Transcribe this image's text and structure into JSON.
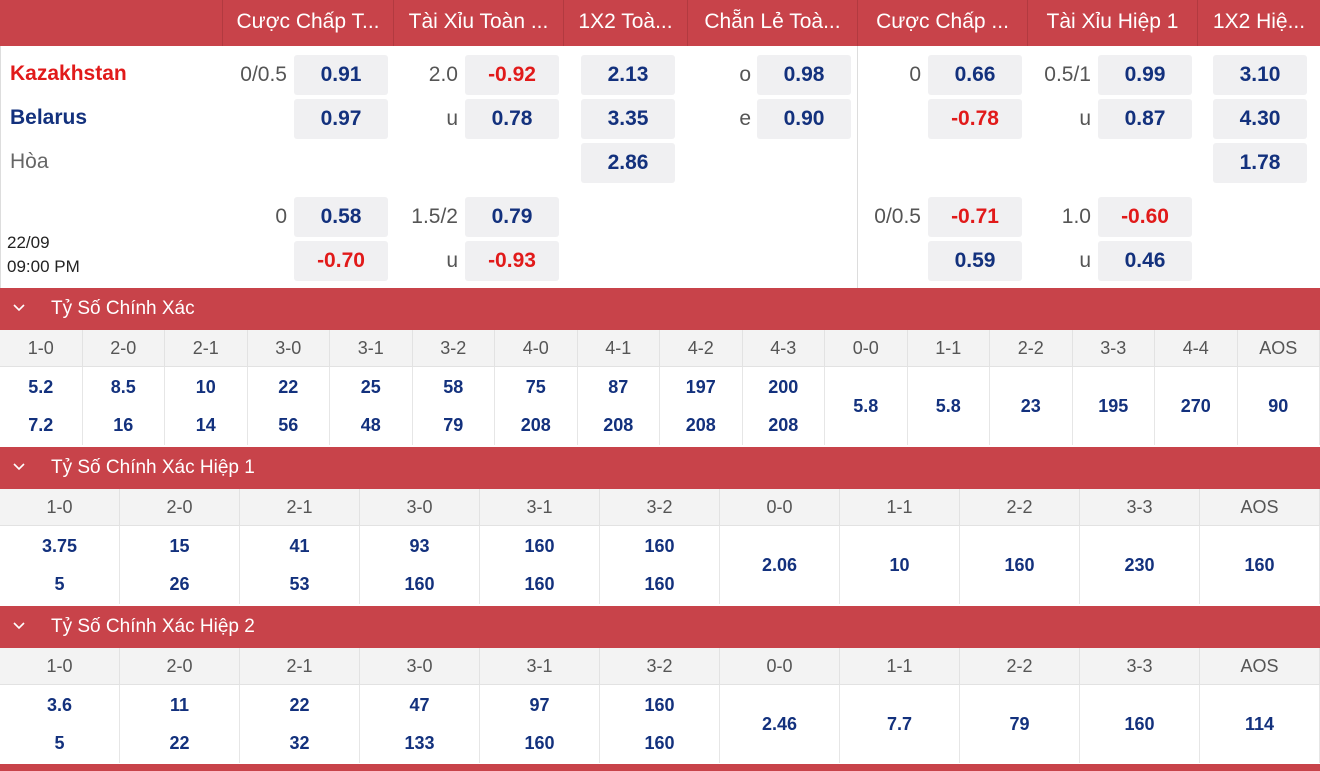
{
  "header": {
    "columns": [
      "Cược Chấp T...",
      "Tài Xỉu Toàn ...",
      "1X2 Toà...",
      "Chẵn Lẻ Toà...",
      "Cược Chấp ...",
      "Tài Xỉu Hiệp 1",
      "1X2 Hiệ..."
    ]
  },
  "match": {
    "home": "Kazakhstan",
    "away": "Belarus",
    "draw": "Hòa",
    "date": "22/09",
    "time": "09:00 PM"
  },
  "odds": {
    "hcap_full": {
      "line1": "0/0.5",
      "home1": "0.91",
      "away1": "0.97",
      "line2": "0",
      "home2": "0.58",
      "away2": "-0.70"
    },
    "ou_full": {
      "line1": "2.0",
      "over1": "-0.92",
      "u1": "u",
      "under1": "0.78",
      "line2": "1.5/2",
      "over2": "0.79",
      "u2": "u",
      "under2": "-0.93"
    },
    "x12_full": {
      "home": "2.13",
      "away": "3.35",
      "draw": "2.86"
    },
    "oe_full": {
      "o": "o",
      "odd": "0.98",
      "e": "e",
      "even": "0.90"
    },
    "hcap_h1": {
      "line1": "0",
      "home1": "0.66",
      "away1": "-0.78",
      "line2": "0/0.5",
      "home2": "-0.71",
      "away2": "0.59"
    },
    "ou_h1": {
      "line1": "0.5/1",
      "over1": "0.99",
      "u1": "u",
      "under1": "0.87",
      "line2": "1.0",
      "over2": "-0.60",
      "u2": "u",
      "under2": "0.46"
    },
    "x12_h1": {
      "home": "3.10",
      "away": "4.30",
      "draw": "1.78"
    }
  },
  "sections": [
    {
      "title": "Tỷ Số Chính Xác",
      "headers": [
        "1-0",
        "2-0",
        "2-1",
        "3-0",
        "3-1",
        "3-2",
        "4-0",
        "4-1",
        "4-2",
        "4-3",
        "0-0",
        "1-1",
        "2-2",
        "3-3",
        "4-4",
        "AOS"
      ],
      "home": [
        "5.2",
        "8.5",
        "10",
        "22",
        "25",
        "58",
        "75",
        "87",
        "197",
        "200"
      ],
      "away": [
        "7.2",
        "16",
        "14",
        "56",
        "48",
        "79",
        "208",
        "208",
        "208",
        "208"
      ],
      "single": [
        "5.8",
        "5.8",
        "23",
        "195",
        "270",
        "90"
      ]
    },
    {
      "title": "Tỷ Số Chính Xác Hiệp 1",
      "headers": [
        "1-0",
        "2-0",
        "2-1",
        "3-0",
        "3-1",
        "3-2",
        "0-0",
        "1-1",
        "2-2",
        "3-3",
        "AOS"
      ],
      "home": [
        "3.75",
        "15",
        "41",
        "93",
        "160",
        "160"
      ],
      "away": [
        "5",
        "26",
        "53",
        "160",
        "160",
        "160"
      ],
      "single": [
        "2.06",
        "10",
        "160",
        "230",
        "160"
      ]
    },
    {
      "title": "Tỷ Số Chính Xác Hiệp 2",
      "headers": [
        "1-0",
        "2-0",
        "2-1",
        "3-0",
        "3-1",
        "3-2",
        "0-0",
        "1-1",
        "2-2",
        "3-3",
        "AOS"
      ],
      "home": [
        "3.6",
        "11",
        "22",
        "47",
        "97",
        "160"
      ],
      "away": [
        "5",
        "22",
        "32",
        "133",
        "160",
        "160"
      ],
      "single": [
        "2.46",
        "7.7",
        "79",
        "160",
        "114"
      ]
    }
  ],
  "colors": {
    "accent": "#c8434a",
    "odd_blue": "#13317d",
    "odd_red": "#e11a1a",
    "home_team": "#e11a1a",
    "away_team": "#13317d"
  }
}
